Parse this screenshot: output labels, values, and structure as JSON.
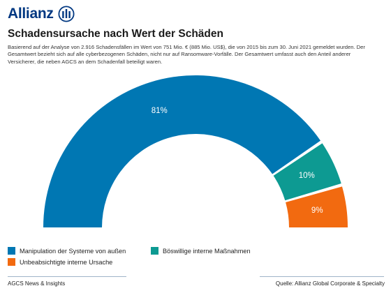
{
  "brand": {
    "name": "Allianz",
    "logo_icon": "allianz-eagle-logo"
  },
  "header": {
    "title": "Schadensursache nach Wert der Schäden",
    "description": "Basierend auf der Analyse von 2.916 Schadensfällen im Wert von 751 Mio. € (885 Mio. US$), die von 2015 bis zum 30. Juni 2021 gemeldet wurden. Der Gesamtwert bezieht sich auf alle cyberbezogenen Schäden, nicht nur auf Ransomware-Vorfälle. Der Gesamtwert umfasst auch den Anteil anderer Versicherer, die neben AGCS an dem Schadenfall beteiligt waren."
  },
  "chart_data": {
    "type": "pie",
    "variant": "semi-donut",
    "title": "Schadensursache nach Wert der Schäden",
    "series": [
      {
        "name": "Manipulation der Systeme von außen",
        "value": 81,
        "label": "81%",
        "color": "#0077b3"
      },
      {
        "name": "Böswillige interne Maßnahmen",
        "value": 10,
        "label": "10%",
        "color": "#0d9a92"
      },
      {
        "name": "Unbeabsichtigte interne Ursache",
        "value": 9,
        "label": "9%",
        "color": "#f26a10"
      }
    ],
    "legend_position": "bottom-left"
  },
  "footer": {
    "left": "AGCS News & Insights",
    "right": "Quelle: Allianz Global Corporate & Specialty"
  }
}
